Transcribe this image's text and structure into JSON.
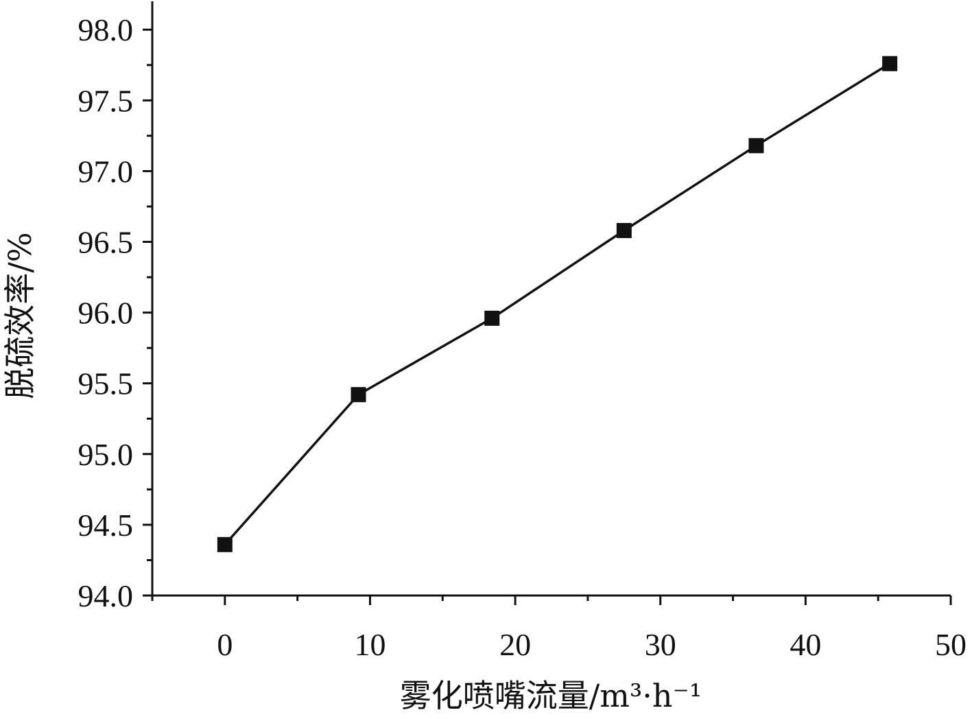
{
  "chart_data": {
    "type": "line",
    "title": "",
    "xlabel": "雾化喷嘴流量/m³·h⁻¹",
    "ylabel": "脱硫效率/%",
    "xlim": [
      -5,
      50
    ],
    "ylim": [
      94.0,
      98.2
    ],
    "x_ticks": [
      0,
      10,
      20,
      30,
      40,
      50
    ],
    "x_tick_labels": [
      "0",
      "10",
      "20",
      "30",
      "40",
      "50"
    ],
    "y_ticks": [
      94.0,
      94.5,
      95.0,
      95.5,
      96.0,
      96.5,
      97.0,
      97.5,
      98.0
    ],
    "y_tick_labels": [
      "94.0",
      "94.5",
      "95.0",
      "95.5",
      "96.0",
      "96.5",
      "97.0",
      "97.5",
      "98.0"
    ],
    "grid": false,
    "legend": "none",
    "marker": "square",
    "line_color": "#111111",
    "series": [
      {
        "x": [
          0,
          9.2,
          18.4,
          27.5,
          36.6,
          45.8
        ],
        "y": [
          94.36,
          95.42,
          95.96,
          96.58,
          97.18,
          97.76
        ]
      }
    ]
  }
}
